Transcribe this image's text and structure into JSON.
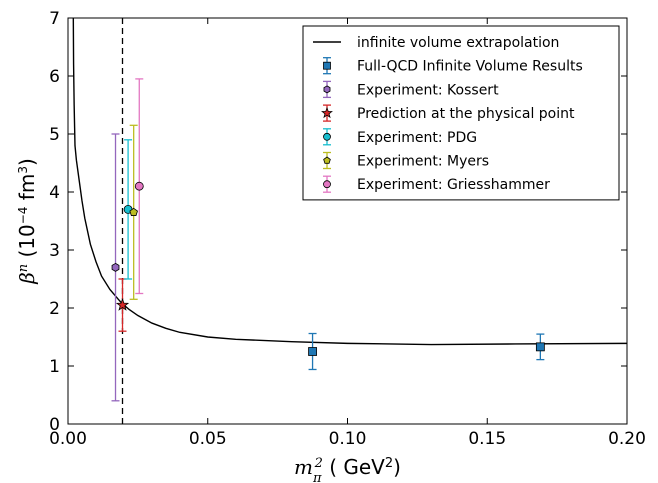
{
  "chart_data": {
    "type": "scatter",
    "xlabel": "m_π^2 ( GeV^2)",
    "ylabel": "β^n (10^-4 fm^3)",
    "xlabel_parts": {
      "main": "m",
      "sub": "π",
      "sup": "2",
      "open": " ( ",
      "unit": "GeV",
      "unit_sup": "2",
      "close": ")"
    },
    "ylabel_parts": {
      "main": "β",
      "sup": "n",
      "open": " (10",
      "exp": "−4",
      "unit": " fm",
      "unit_sup": "3",
      "close": ")"
    },
    "xlim": [
      0.0,
      0.2
    ],
    "ylim": [
      0,
      7
    ],
    "x_ticks": [
      "0.00",
      "0.05",
      "0.10",
      "0.15",
      "0.20"
    ],
    "y_ticks": [
      "0",
      "1",
      "2",
      "3",
      "4",
      "5",
      "6",
      "7"
    ],
    "grid": false,
    "legend_position": "top-right",
    "physical_point_x": 0.0195,
    "series": [
      {
        "name": "infinite volume extrapolation",
        "kind": "line",
        "color": "#000000",
        "x": [
          0.0019,
          0.002,
          0.0022,
          0.0025,
          0.003,
          0.004,
          0.005,
          0.006,
          0.008,
          0.01,
          0.012,
          0.015,
          0.018,
          0.0195,
          0.022,
          0.025,
          0.03,
          0.035,
          0.04,
          0.05,
          0.06,
          0.08,
          0.1,
          0.13,
          0.16,
          0.2
        ],
        "y": [
          7.0,
          6.2,
          5.5,
          4.8,
          4.55,
          4.2,
          3.85,
          3.55,
          3.1,
          2.8,
          2.55,
          2.32,
          2.15,
          2.07,
          1.97,
          1.87,
          1.74,
          1.65,
          1.58,
          1.5,
          1.46,
          1.42,
          1.39,
          1.37,
          1.38,
          1.39
        ]
      },
      {
        "name": "Full-QCD Infinite Volume Results",
        "kind": "errorbar",
        "marker": "square",
        "color": "#1f77b4",
        "points": [
          {
            "x": 0.0875,
            "y": 1.25,
            "err": 0.31
          },
          {
            "x": 0.169,
            "y": 1.33,
            "err": 0.22
          }
        ]
      },
      {
        "name": "Experiment: Kossert",
        "kind": "errorbar",
        "marker": "hexagon",
        "color": "#9467bd",
        "points": [
          {
            "x": 0.017,
            "y": 2.7,
            "err": 2.3
          }
        ]
      },
      {
        "name": "Prediction at the physical point",
        "kind": "errorbar",
        "marker": "star",
        "color": "#d62728",
        "points": [
          {
            "x": 0.0195,
            "y": 2.05,
            "err": 0.45
          }
        ]
      },
      {
        "name": "Experiment: PDG",
        "kind": "errorbar",
        "marker": "circle",
        "color": "#17becf",
        "points": [
          {
            "x": 0.0215,
            "y": 3.7,
            "err": 1.2
          }
        ]
      },
      {
        "name": "Experiment: Myers",
        "kind": "errorbar",
        "marker": "pentagon",
        "color": "#bcbd22",
        "points": [
          {
            "x": 0.0235,
            "y": 3.65,
            "err": 1.5
          }
        ]
      },
      {
        "name": "Experiment: Griesshammer",
        "kind": "errorbar",
        "marker": "circle",
        "color": "#e377c2",
        "points": [
          {
            "x": 0.0255,
            "y": 4.1,
            "err": 1.85
          }
        ]
      }
    ]
  }
}
